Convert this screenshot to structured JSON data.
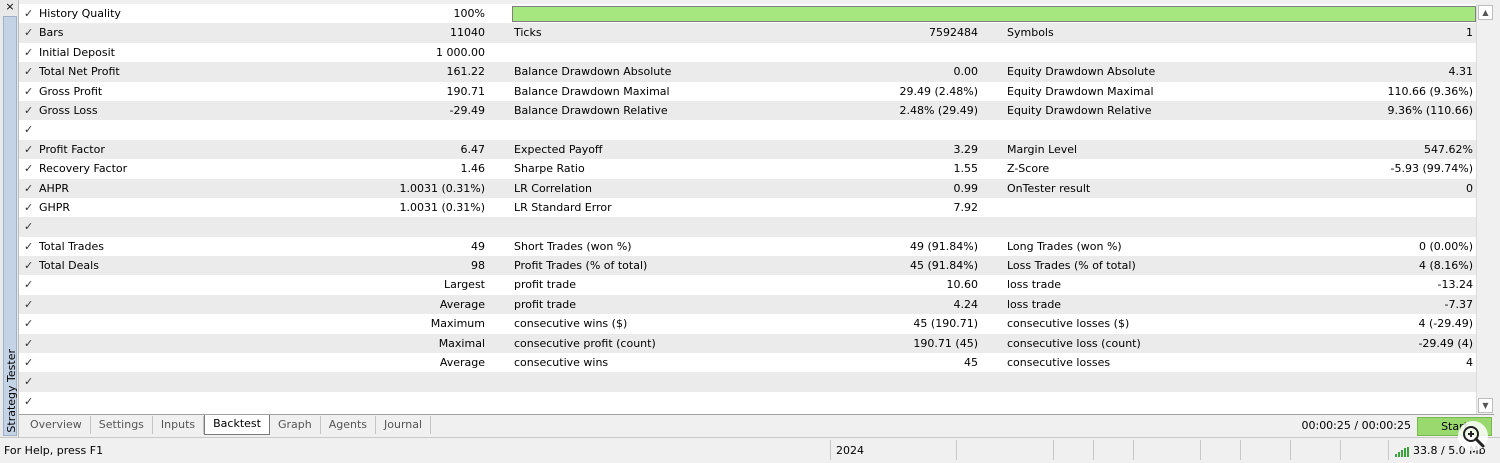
{
  "window": {
    "close_glyph": "×",
    "side_title": "Strategy Tester"
  },
  "quality": {
    "label": "History Quality",
    "value": "100%",
    "fraction": 1.0,
    "bar_color": "#a6e77f"
  },
  "rows": [
    {
      "l1": "Bars",
      "v1": "11040",
      "l2": "Ticks",
      "v2": "7592484",
      "l3": "Symbols",
      "v3": "1"
    },
    {
      "l1": "Initial Deposit",
      "v1": "1 000.00",
      "l2": "",
      "v2": "",
      "l3": "",
      "v3": ""
    },
    {
      "l1": "Total Net Profit",
      "v1": "161.22",
      "l2": "Balance Drawdown Absolute",
      "v2": "0.00",
      "l3": "Equity Drawdown Absolute",
      "v3": "4.31"
    },
    {
      "l1": "Gross Profit",
      "v1": "190.71",
      "l2": "Balance Drawdown Maximal",
      "v2": "29.49 (2.48%)",
      "l3": "Equity Drawdown Maximal",
      "v3": "110.66 (9.36%)"
    },
    {
      "l1": "Gross Loss",
      "v1": "-29.49",
      "l2": "Balance Drawdown Relative",
      "v2": "2.48% (29.49)",
      "l3": "Equity Drawdown Relative",
      "v3": "9.36% (110.66)"
    },
    {
      "l1": "",
      "v1": "",
      "l2": "",
      "v2": "",
      "l3": "",
      "v3": ""
    },
    {
      "l1": "Profit Factor",
      "v1": "6.47",
      "l2": "Expected Payoff",
      "v2": "3.29",
      "l3": "Margin Level",
      "v3": "547.62%"
    },
    {
      "l1": "Recovery Factor",
      "v1": "1.46",
      "l2": "Sharpe Ratio",
      "v2": "1.55",
      "l3": "Z-Score",
      "v3": "-5.93 (99.74%)"
    },
    {
      "l1": "AHPR",
      "v1": "1.0031 (0.31%)",
      "l2": "LR Correlation",
      "v2": "0.99",
      "l3": "OnTester result",
      "v3": "0"
    },
    {
      "l1": "GHPR",
      "v1": "1.0031 (0.31%)",
      "l2": "LR Standard Error",
      "v2": "7.92",
      "l3": "",
      "v3": ""
    },
    {
      "l1": "",
      "v1": "",
      "l2": "",
      "v2": "",
      "l3": "",
      "v3": ""
    },
    {
      "l1": "Total Trades",
      "v1": "49",
      "l2": "Short Trades (won %)",
      "v2": "49 (91.84%)",
      "l3": "Long Trades (won %)",
      "v3": "0 (0.00%)"
    },
    {
      "l1": "Total Deals",
      "v1": "98",
      "l2": "Profit Trades (% of total)",
      "v2": "45 (91.84%)",
      "l3": "Loss Trades (% of total)",
      "v3": "4 (8.16%)"
    },
    {
      "l1": "",
      "v1": "Largest",
      "l2": "profit trade",
      "v2": "10.60",
      "l3": "loss trade",
      "v3": "-13.24"
    },
    {
      "l1": "",
      "v1": "Average",
      "l2": "profit trade",
      "v2": "4.24",
      "l3": "loss trade",
      "v3": "-7.37"
    },
    {
      "l1": "",
      "v1": "Maximum",
      "l2": "consecutive wins ($)",
      "v2": "45 (190.71)",
      "l3": "consecutive losses ($)",
      "v3": "4 (-29.49)"
    },
    {
      "l1": "",
      "v1": "Maximal",
      "l2": "consecutive profit (count)",
      "v2": "190.71 (45)",
      "l3": "consecutive loss (count)",
      "v3": "-29.49 (4)"
    },
    {
      "l1": "",
      "v1": "Average",
      "l2": "consecutive wins",
      "v2": "45",
      "l3": "consecutive losses",
      "v3": "4"
    },
    {
      "l1": "",
      "v1": "",
      "l2": "",
      "v2": "",
      "l3": "",
      "v3": ""
    },
    {
      "l1": "",
      "v1": "",
      "l2": "",
      "v2": "",
      "l3": "",
      "v3": ""
    }
  ],
  "check_glyph": "✓",
  "tabs": [
    "Overview",
    "Settings",
    "Inputs",
    "Backtest",
    "Graph",
    "Agents",
    "Journal"
  ],
  "active_tab": "Backtest",
  "timer": "00:00:25 / 00:00:25",
  "start_label": "Start",
  "status": {
    "help": "For Help, press F1",
    "year": "2024",
    "network": "33.8 / 5.0 Mb"
  },
  "icons": {
    "close": "close-icon",
    "scroll_up": "chevron-up-icon",
    "scroll_down": "chevron-down-icon",
    "zoom": "zoom-in-icon",
    "signal": "signal-bars-icon"
  }
}
